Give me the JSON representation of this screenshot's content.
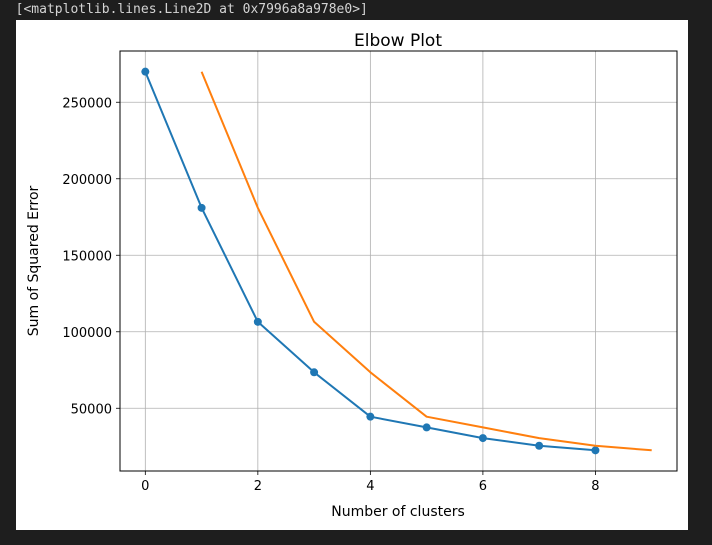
{
  "output_line": "  [<matplotlib.lines.Line2D at 0x7996a8a978e0>]",
  "chart_data": {
    "type": "line",
    "title": "Elbow Plot",
    "xlabel": "Number of clusters",
    "ylabel": "Sum of Squared Error",
    "xlim": [
      -0.45,
      9.45
    ],
    "ylim": [
      9000,
      283500
    ],
    "grid": true,
    "xticks": [
      0,
      2,
      4,
      6,
      8
    ],
    "yticks": [
      50000,
      100000,
      150000,
      200000,
      250000
    ],
    "series": [
      {
        "color": "#1f77b4",
        "marker": "circle",
        "x": [
          0,
          1,
          2,
          3,
          4,
          5,
          6,
          7,
          8
        ],
        "values": [
          270000,
          181000,
          106500,
          73500,
          44500,
          37500,
          30500,
          25500,
          22500
        ]
      },
      {
        "color": "#ff7f0e",
        "marker": "none",
        "x": [
          1,
          2,
          3,
          4,
          5,
          6,
          7,
          8,
          9
        ],
        "values": [
          270000,
          181000,
          106500,
          73500,
          44500,
          37500,
          30500,
          25500,
          22500
        ]
      }
    ]
  }
}
